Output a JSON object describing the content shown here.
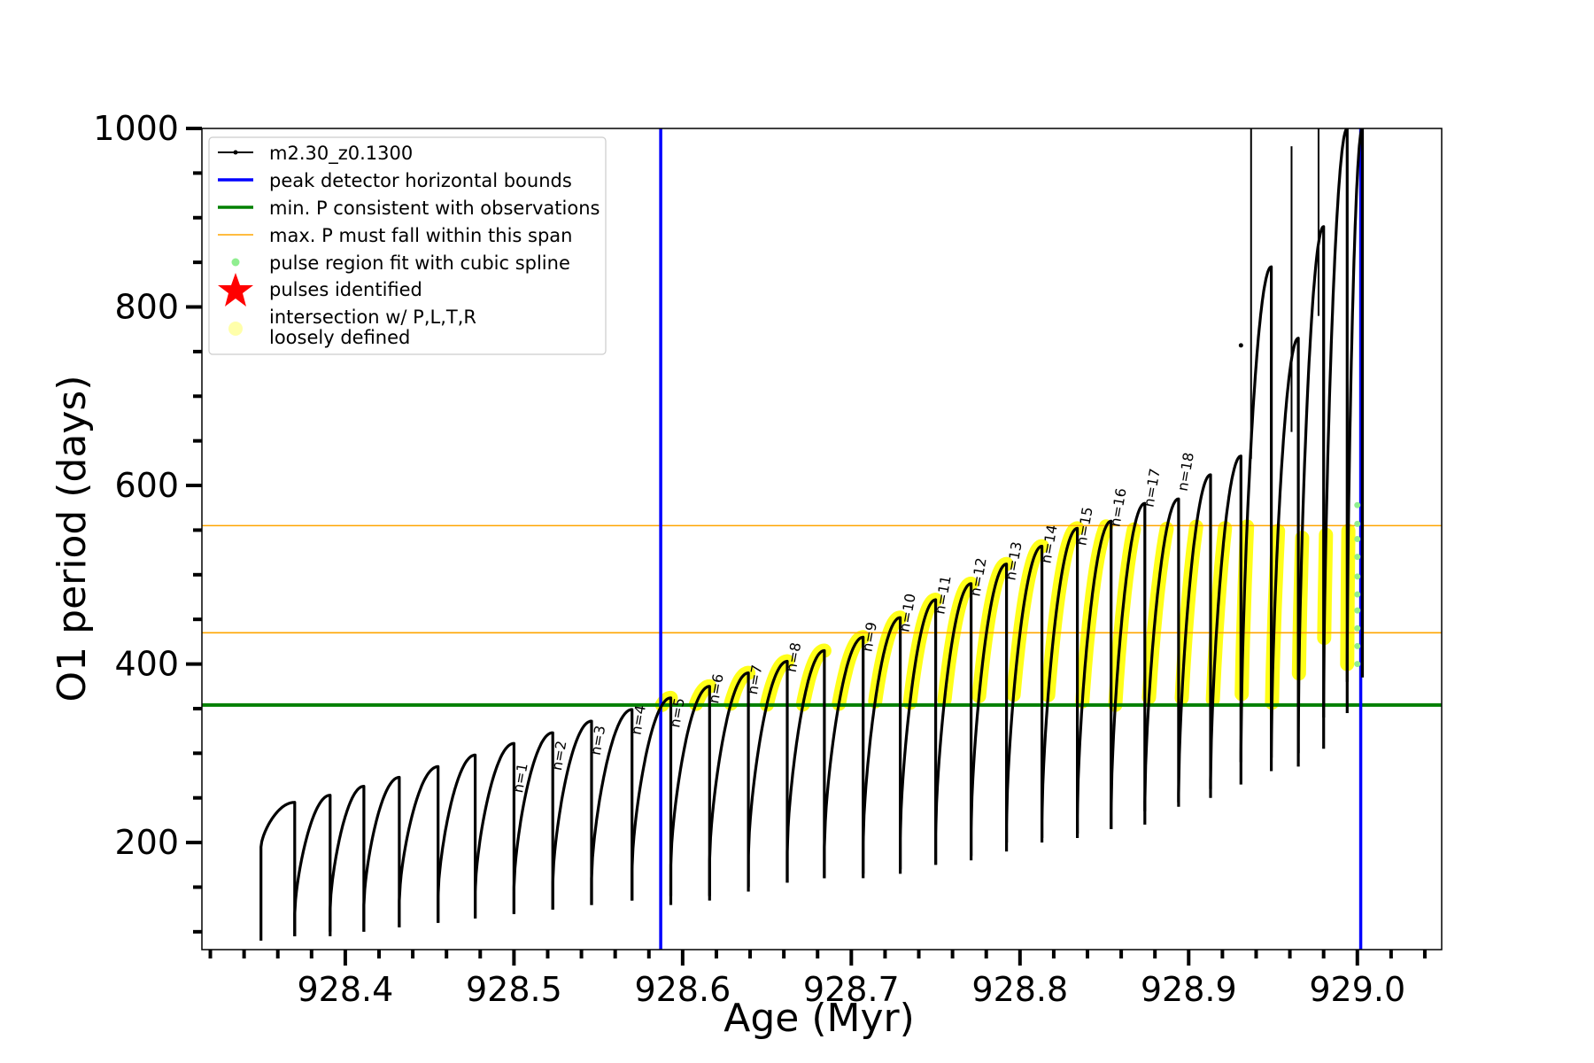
{
  "chart_data": {
    "type": "scatter",
    "title": "",
    "xlabel": "Age (Myr)",
    "ylabel": "O1 period (days)",
    "xlim": [
      928.315,
      929.05
    ],
    "ylim": [
      80,
      1000
    ],
    "x_ticks": [
      928.4,
      928.5,
      928.6,
      928.7,
      928.8,
      928.9,
      929.0
    ],
    "x_tick_labels": [
      "928.4",
      "928.5",
      "928.6",
      "928.7",
      "928.8",
      "928.9",
      "929.0"
    ],
    "y_ticks": [
      200,
      400,
      600,
      800,
      1000
    ],
    "y_tick_labels": [
      "200",
      "400",
      "600",
      "800",
      "1000"
    ],
    "grid": false,
    "legend_position": "top-left",
    "legend": [
      {
        "label": "m2.30_z0.1300",
        "marker": "line-dot",
        "color": "#000000"
      },
      {
        "label": "peak detector horizontal bounds",
        "marker": "line",
        "color": "#0000ff"
      },
      {
        "label": "min. P consistent with observations",
        "marker": "line",
        "color": "#008000"
      },
      {
        "label": "max. P must fall within this span",
        "marker": "thin-line",
        "color": "#ffa500"
      },
      {
        "label": "pulse region fit with cubic spline",
        "marker": "dot",
        "color": "#90ee90"
      },
      {
        "label": "pulses identified",
        "marker": "star",
        "color": "#ff0000"
      },
      {
        "label": "intersection w/ P,L,T,R",
        "label2": "loosely defined",
        "marker": "circle",
        "color": "#ffffaa"
      }
    ],
    "vertical_lines": [
      {
        "x": 928.587,
        "color": "#0000ff",
        "role": "peak detector horizontal bounds"
      },
      {
        "x": 929.002,
        "color": "#0000ff",
        "role": "peak detector horizontal bounds"
      }
    ],
    "horizontal_lines": [
      {
        "y": 354,
        "color": "#008000",
        "role": "min. P consistent with observations"
      },
      {
        "y": 435,
        "color": "#ffa500",
        "role": "max. P span lower"
      },
      {
        "y": 555,
        "color": "#ffa500",
        "role": "max. P span upper"
      }
    ],
    "series": [
      {
        "name": "m2.30_z0.1300",
        "color": "#000000",
        "pulses": [
          {
            "x0": 928.35,
            "x1": 928.37,
            "min": 90,
            "start": 195,
            "peak": 245
          },
          {
            "x0": 928.37,
            "x1": 928.391,
            "min": 95,
            "start": 120,
            "peak": 253
          },
          {
            "x0": 928.391,
            "x1": 928.411,
            "min": 95,
            "start": 125,
            "peak": 263
          },
          {
            "x0": 928.411,
            "x1": 928.432,
            "min": 100,
            "start": 130,
            "peak": 273
          },
          {
            "x0": 928.432,
            "x1": 928.455,
            "min": 105,
            "start": 135,
            "peak": 285
          },
          {
            "x0": 928.455,
            "x1": 928.477,
            "min": 110,
            "start": 140,
            "peak": 298
          },
          {
            "x0": 928.477,
            "x1": 928.5,
            "min": 115,
            "start": 145,
            "peak": 311
          },
          {
            "x0": 928.5,
            "x1": 928.523,
            "min": 120,
            "start": 150,
            "peak": 323
          },
          {
            "x0": 928.523,
            "x1": 928.546,
            "min": 125,
            "start": 155,
            "peak": 336
          },
          {
            "x0": 928.546,
            "x1": 928.57,
            "min": 130,
            "start": 160,
            "peak": 349
          },
          {
            "x0": 928.57,
            "x1": 928.593,
            "min": 135,
            "start": 170,
            "peak": 362
          },
          {
            "x0": 928.593,
            "x1": 928.616,
            "min": 130,
            "start": 175,
            "peak": 375
          },
          {
            "x0": 928.616,
            "x1": 928.639,
            "min": 140,
            "start": 180,
            "peak": 390
          },
          {
            "x0": 928.639,
            "x1": 928.662,
            "min": 150,
            "start": 185,
            "peak": 403
          },
          {
            "x0": 928.662,
            "x1": 928.684,
            "min": 155,
            "start": 190,
            "peak": 415
          },
          {
            "x0": 928.684,
            "x1": 928.707,
            "min": 160,
            "start": 195,
            "peak": 430
          },
          {
            "x0": 928.707,
            "x1": 928.729,
            "min": 160,
            "start": 200,
            "peak": 452
          },
          {
            "x0": 928.729,
            "x1": 928.75,
            "min": 170,
            "start": 205,
            "peak": 472
          },
          {
            "x0": 928.75,
            "x1": 928.771,
            "min": 175,
            "start": 210,
            "peak": 490
          },
          {
            "x0": 928.771,
            "x1": 928.792,
            "min": 185,
            "start": 215,
            "peak": 512
          },
          {
            "x0": 928.792,
            "x1": 928.813,
            "min": 200,
            "start": 220,
            "peak": 532
          },
          {
            "x0": 928.813,
            "x1": 928.834,
            "min": 200,
            "start": 225,
            "peak": 552
          },
          {
            "x0": 928.834,
            "x1": 928.854,
            "min": 210,
            "start": 230,
            "peak": 560
          },
          {
            "x0": 928.854,
            "x1": 928.874,
            "min": 215,
            "start": 235,
            "peak": 580
          },
          {
            "x0": 928.874,
            "x1": 928.894,
            "min": 235,
            "start": 245,
            "peak": 585
          },
          {
            "x0": 928.894,
            "x1": 928.913,
            "min": 245,
            "start": 255,
            "peak": 612
          },
          {
            "x0": 928.913,
            "x1": 928.931,
            "min": 260,
            "start": 270,
            "peak": 633
          },
          {
            "x0": 928.931,
            "x1": 928.949,
            "min": 290,
            "start": 300,
            "peak": 845
          },
          {
            "x0": 928.949,
            "x1": 928.965,
            "min": 280,
            "start": 300,
            "peak": 765
          },
          {
            "x0": 928.965,
            "x1": 928.98,
            "min": 300,
            "start": 320,
            "peak": 890
          },
          {
            "x0": 928.98,
            "x1": 928.994,
            "min": 340,
            "start": 350,
            "peak": 1000
          },
          {
            "x0": 928.994,
            "x1": 929.003,
            "min": 380,
            "start": 400,
            "peak": 1000
          }
        ],
        "spikes": [
          {
            "x": 928.937,
            "y_low": 630,
            "y_high": 1000
          },
          {
            "x": 928.931,
            "y": 757
          },
          {
            "x": 928.961,
            "y_low": 660,
            "y_high": 980
          },
          {
            "x": 928.977,
            "y_low": 790,
            "y_high": 1000
          }
        ]
      },
      {
        "name": "intersection w/ P,L,T,R loosely defined",
        "color": "#ffff00",
        "band": [
          354,
          555
        ]
      },
      {
        "name": "pulse region fit with cubic spline",
        "color": "#90ee90",
        "points": [
          {
            "x": 929.0,
            "y": 578
          },
          {
            "x": 929.0,
            "y": 557
          },
          {
            "x": 929.0,
            "y": 540
          },
          {
            "x": 929.0,
            "y": 520
          },
          {
            "x": 929.0,
            "y": 498
          },
          {
            "x": 929.0,
            "y": 478
          },
          {
            "x": 929.0,
            "y": 460
          },
          {
            "x": 929.0,
            "y": 440
          },
          {
            "x": 929.0,
            "y": 420
          },
          {
            "x": 929.0,
            "y": 400
          }
        ]
      }
    ],
    "annotations": [
      {
        "text": "n=1",
        "x": 928.505,
        "y": 255
      },
      {
        "text": "n=2",
        "x": 928.528,
        "y": 280
      },
      {
        "text": "n=3",
        "x": 928.551,
        "y": 297
      },
      {
        "text": "n=4",
        "x": 928.575,
        "y": 320
      },
      {
        "text": "n=5",
        "x": 928.598,
        "y": 328
      },
      {
        "text": "n=6",
        "x": 928.621,
        "y": 355
      },
      {
        "text": "n=7",
        "x": 928.644,
        "y": 365
      },
      {
        "text": "n=8",
        "x": 928.667,
        "y": 390
      },
      {
        "text": "n=9",
        "x": 928.712,
        "y": 413
      },
      {
        "text": "n=10",
        "x": 928.734,
        "y": 435
      },
      {
        "text": "n=11",
        "x": 928.755,
        "y": 455
      },
      {
        "text": "n=12",
        "x": 928.776,
        "y": 475
      },
      {
        "text": "n=13",
        "x": 928.797,
        "y": 493
      },
      {
        "text": "n=14",
        "x": 928.818,
        "y": 512
      },
      {
        "text": "n=15",
        "x": 928.839,
        "y": 532
      },
      {
        "text": "n=16",
        "x": 928.859,
        "y": 553
      },
      {
        "text": "n=17",
        "x": 928.879,
        "y": 575
      },
      {
        "text": "n=18",
        "x": 928.899,
        "y": 593
      }
    ]
  }
}
